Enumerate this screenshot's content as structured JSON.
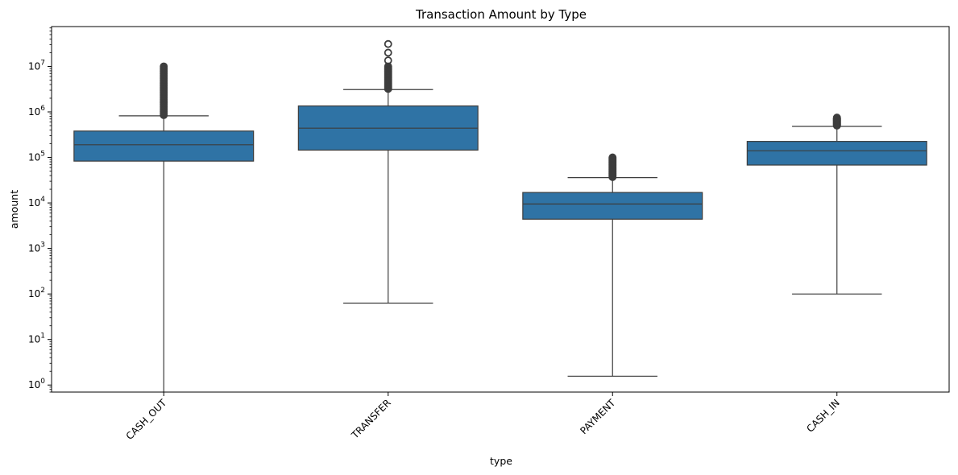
{
  "chart_data": {
    "type": "box",
    "title": "Transaction Amount by Type",
    "xlabel": "type",
    "ylabel": "amount",
    "yscale": "log",
    "ylim": [
      0.7,
      75000000
    ],
    "grid": false,
    "legend": "none",
    "categories": [
      "CASH_OUT",
      "TRANSFER",
      "PAYMENT",
      "CASH_IN"
    ],
    "boxes": [
      {
        "category": "CASH_OUT",
        "whisker_low": 0,
        "q1": 83000,
        "median": 190000,
        "q3": 380000,
        "whisker_high": 820000,
        "outliers_range": [
          850000,
          10000000
        ],
        "outlier_points": []
      },
      {
        "category": "TRANSFER",
        "whisker_low": 63,
        "q1": 145000,
        "median": 440000,
        "q3": 1350000,
        "whisker_high": 3100000,
        "outliers_range": [
          3200000,
          10000000
        ],
        "outlier_points": [
          13500000,
          20000000,
          31000000
        ]
      },
      {
        "category": "PAYMENT",
        "whisker_low": 1.56,
        "q1": 4400,
        "median": 9500,
        "q3": 17000,
        "whisker_high": 36000,
        "outliers_range": [
          37000,
          100000
        ],
        "outlier_points": []
      },
      {
        "category": "CASH_IN",
        "whisker_low": 100,
        "q1": 68000,
        "median": 140000,
        "q3": 225000,
        "whisker_high": 480000,
        "outliers_range": [
          500000,
          750000
        ],
        "outlier_points": []
      }
    ],
    "y_ticks": [
      {
        "value": 1,
        "label_base": "10",
        "label_exp": "0"
      },
      {
        "value": 10,
        "label_base": "10",
        "label_exp": "1"
      },
      {
        "value": 100,
        "label_base": "10",
        "label_exp": "2"
      },
      {
        "value": 1000,
        "label_base": "10",
        "label_exp": "3"
      },
      {
        "value": 10000,
        "label_base": "10",
        "label_exp": "4"
      },
      {
        "value": 100000,
        "label_base": "10",
        "label_exp": "5"
      },
      {
        "value": 1000000,
        "label_base": "10",
        "label_exp": "6"
      },
      {
        "value": 10000000,
        "label_base": "10",
        "label_exp": "7"
      }
    ],
    "colors": {
      "box_fill": "#2f73a5",
      "line": "#3d3d3d",
      "axis": "#000000"
    }
  }
}
